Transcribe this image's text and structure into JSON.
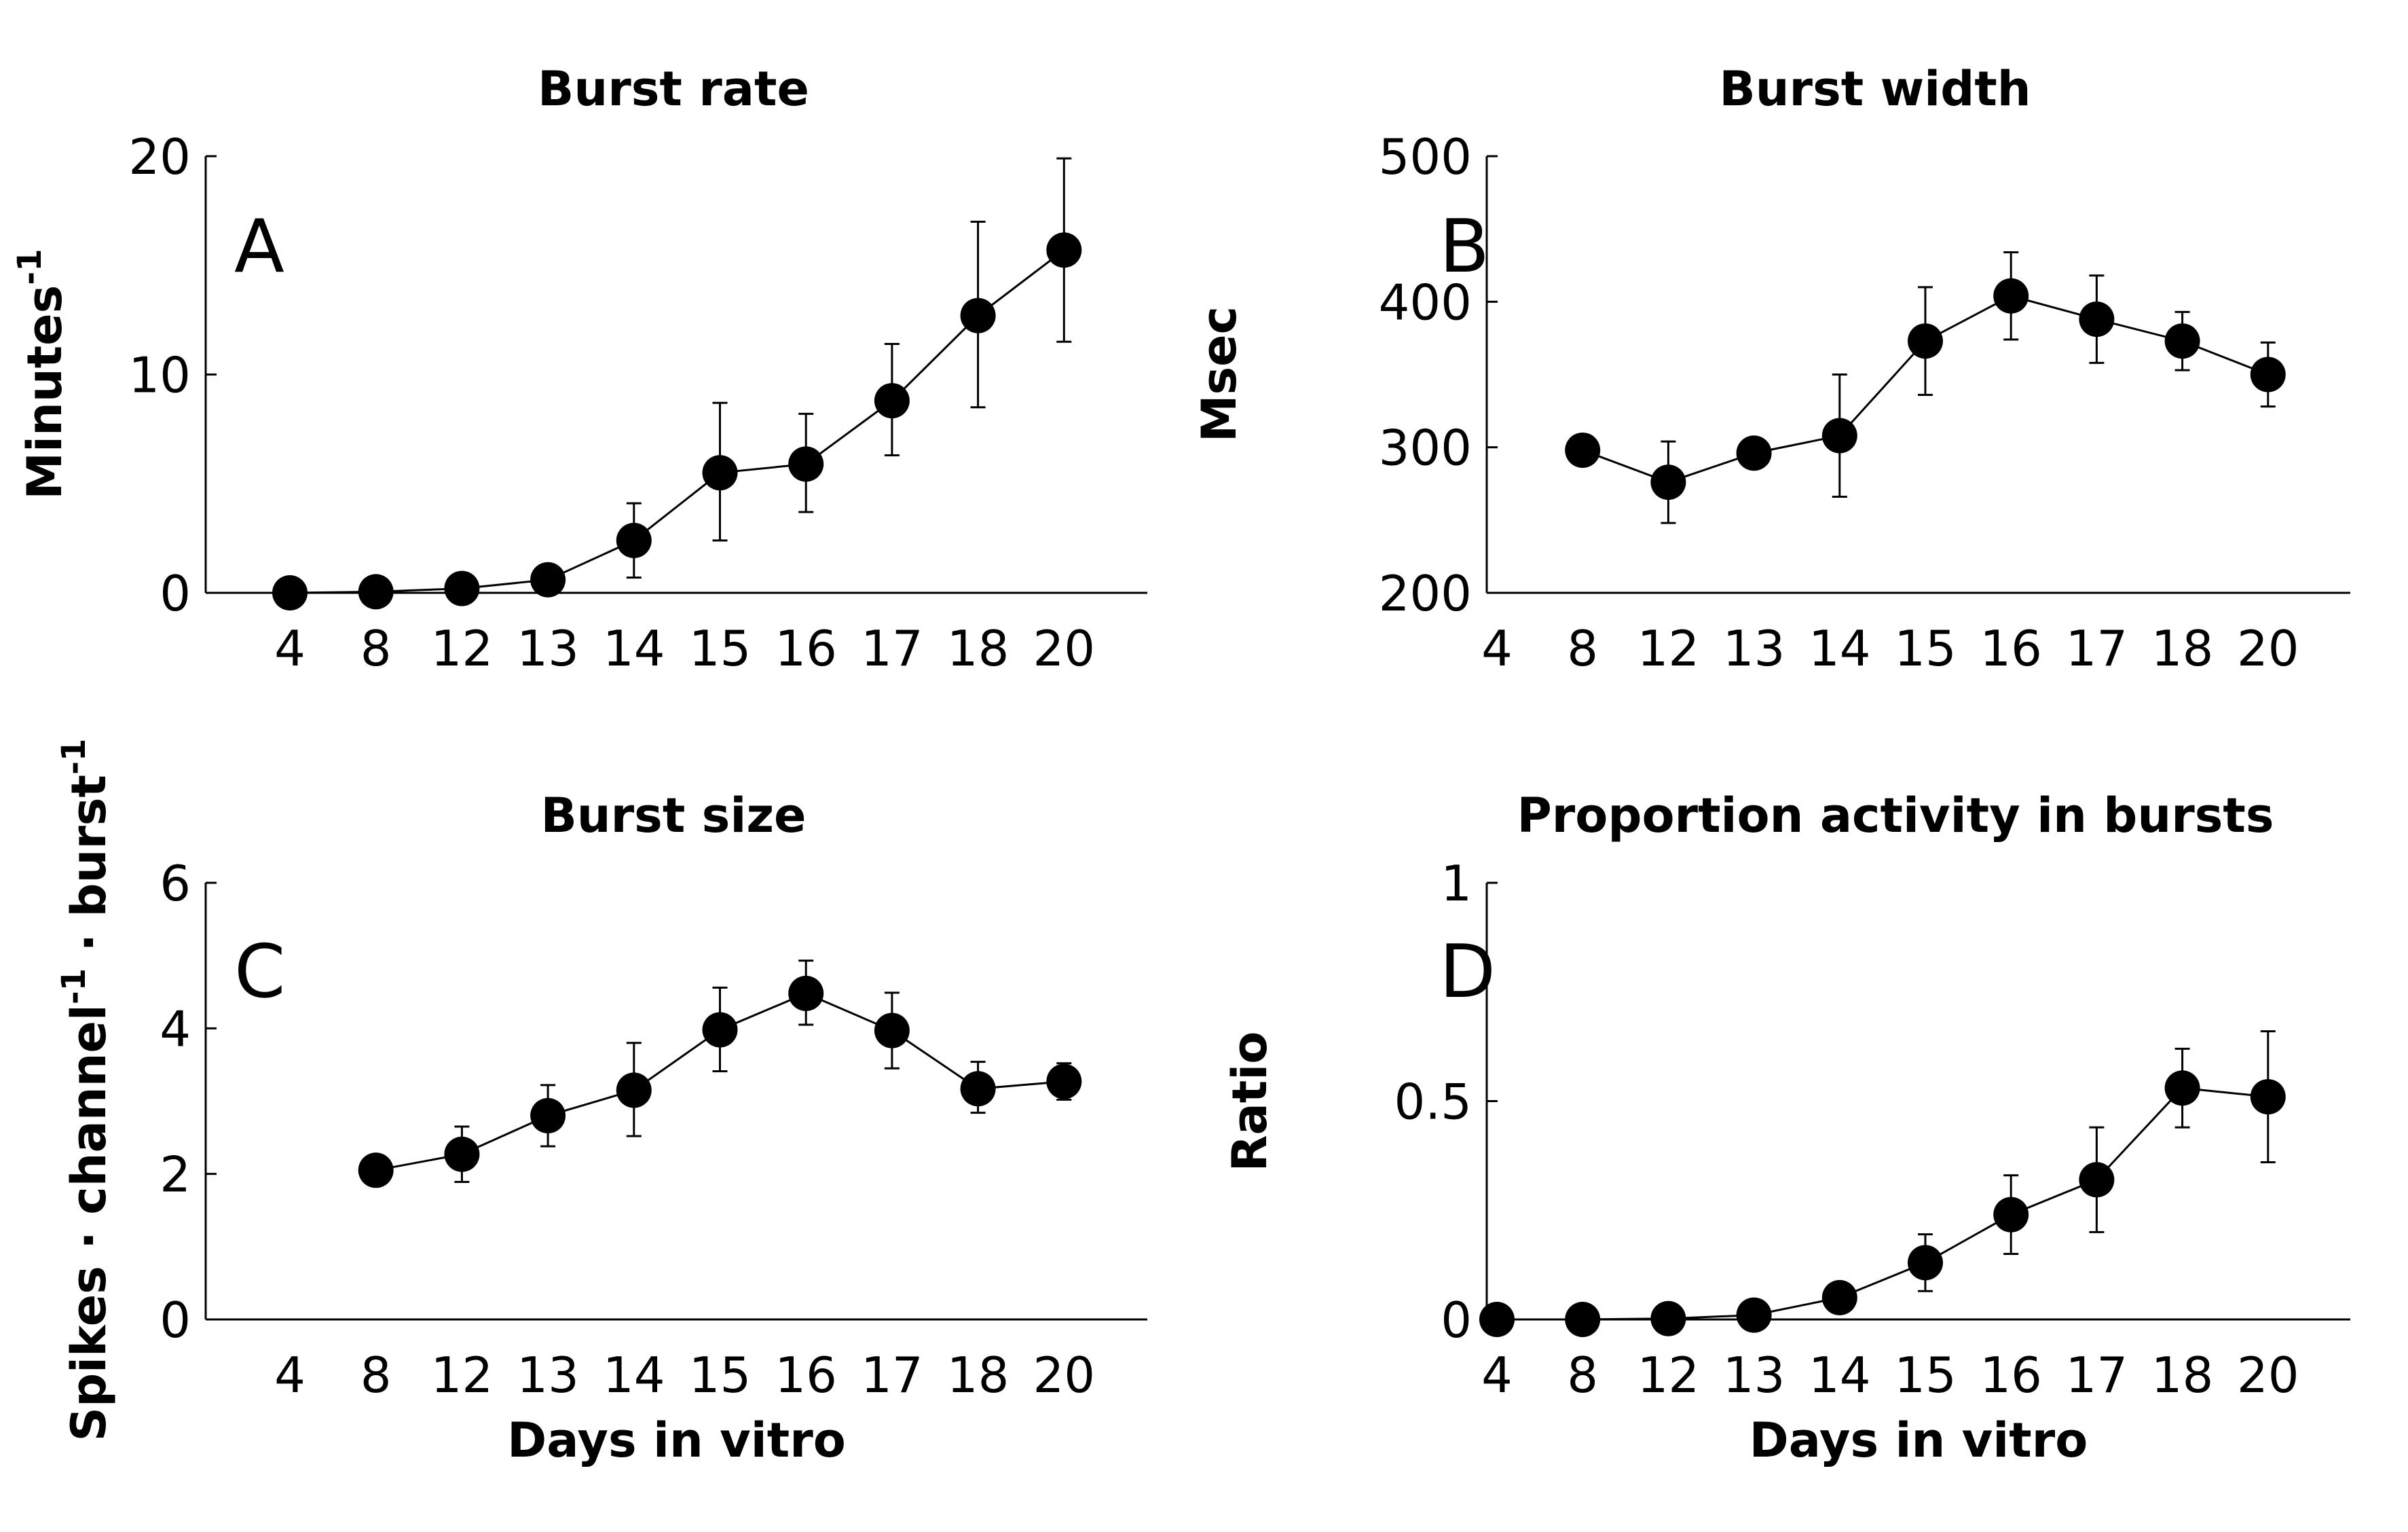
{
  "chart_data": [
    {
      "type": "line",
      "panel_label": "A",
      "title": "Burst rate",
      "xlabel": "",
      "ylabel": "Minutes",
      "ylabel_superscript": "-1",
      "categories": [
        "4",
        "8",
        "12",
        "13",
        "14",
        "15",
        "16",
        "17",
        "18",
        "20"
      ],
      "yticks": [
        "0",
        "10",
        "20"
      ],
      "ylim": [
        0,
        20
      ],
      "error_bars": true,
      "x": [
        "4",
        "8",
        "12",
        "13",
        "14",
        "15",
        "16",
        "17",
        "18",
        "20"
      ],
      "values": [
        0.0,
        0.05,
        0.2,
        0.6,
        2.4,
        5.5,
        5.9,
        8.8,
        12.7,
        15.7
      ],
      "err_low": [
        0.0,
        0.05,
        0.2,
        0.6,
        1.7,
        3.1,
        2.2,
        2.5,
        4.2,
        4.2
      ],
      "err_high": [
        0.0,
        0.05,
        0.2,
        0.6,
        1.7,
        3.2,
        2.3,
        2.6,
        4.3,
        4.2
      ]
    },
    {
      "type": "line",
      "panel_label": "B",
      "title": "Burst width",
      "xlabel": "",
      "ylabel": "Msec",
      "ylabel_superscript": "",
      "categories": [
        "4",
        "8",
        "12",
        "13",
        "14",
        "15",
        "16",
        "17",
        "18",
        "20"
      ],
      "yticks": [
        "200",
        "300",
        "400",
        "500"
      ],
      "ylim": [
        200,
        500
      ],
      "error_bars": true,
      "x": [
        "8",
        "12",
        "13",
        "14",
        "15",
        "16",
        "17",
        "18",
        "20"
      ],
      "values": [
        298,
        276,
        296,
        308,
        373,
        404,
        388,
        373,
        350
      ],
      "err_low": [
        0,
        28,
        0,
        42,
        37,
        30,
        30,
        20,
        22
      ],
      "err_high": [
        0,
        28,
        0,
        42,
        37,
        30,
        30,
        20,
        22
      ]
    },
    {
      "type": "line",
      "panel_label": "C",
      "title": "Burst size",
      "xlabel": "Days in vitro",
      "ylabel": "Spikes · channel",
      "ylabel_mid": " · burst",
      "ylabel_superscript": "-1",
      "categories": [
        "4",
        "8",
        "12",
        "13",
        "14",
        "15",
        "16",
        "17",
        "18",
        "20"
      ],
      "yticks": [
        "0",
        "2",
        "4",
        "6"
      ],
      "ylim": [
        0,
        6
      ],
      "error_bars": true,
      "x": [
        "8",
        "12",
        "13",
        "14",
        "15",
        "16",
        "17",
        "18",
        "20"
      ],
      "values": [
        2.05,
        2.27,
        2.8,
        3.15,
        3.98,
        4.48,
        3.97,
        3.17,
        3.27
      ],
      "err_low": [
        0,
        0.38,
        0.42,
        0.63,
        0.57,
        0.43,
        0.52,
        0.33,
        0.25
      ],
      "err_high": [
        0,
        0.38,
        0.42,
        0.65,
        0.58,
        0.45,
        0.52,
        0.37,
        0.25
      ]
    },
    {
      "type": "line",
      "panel_label": "D",
      "title": "Proportion activity in bursts",
      "xlabel": "Days in vitro",
      "ylabel": "Ratio",
      "ylabel_superscript": "",
      "categories": [
        "4",
        "8",
        "12",
        "13",
        "14",
        "15",
        "16",
        "17",
        "18",
        "20"
      ],
      "yticks": [
        "0",
        "0.5",
        "1"
      ],
      "ylim": [
        0,
        1
      ],
      "error_bars": true,
      "x": [
        "4",
        "8",
        "12",
        "13",
        "14",
        "15",
        "16",
        "17",
        "18",
        "20"
      ],
      "values": [
        0.0,
        0.0,
        0.002,
        0.01,
        0.05,
        0.13,
        0.24,
        0.32,
        0.53,
        0.51
      ],
      "err_low": [
        0,
        0,
        0,
        0,
        0,
        0.065,
        0.09,
        0.12,
        0.09,
        0.15
      ],
      "err_high": [
        0,
        0,
        0,
        0,
        0,
        0.065,
        0.09,
        0.12,
        0.09,
        0.15
      ]
    }
  ]
}
